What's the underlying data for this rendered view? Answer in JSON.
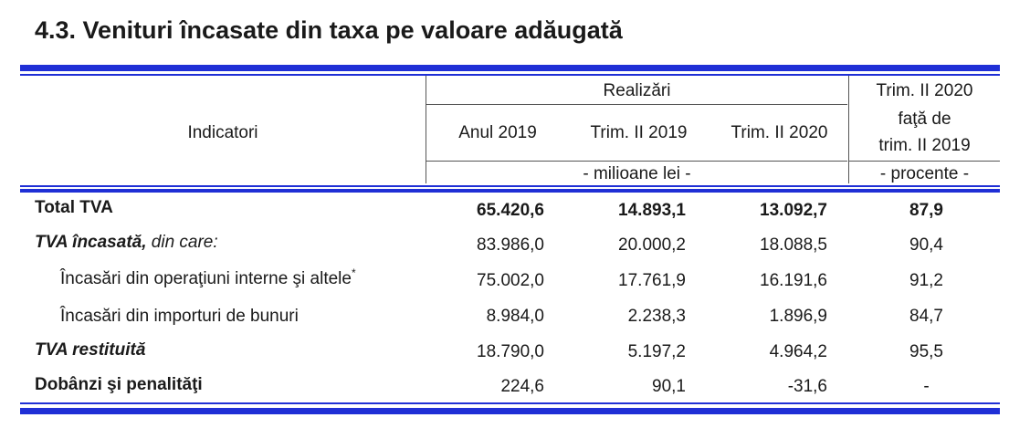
{
  "title": "4.3. Venituri încasate din taxa pe valoare adăugată",
  "header": {
    "indicatori": "Indicatori",
    "realizari": "Realizări",
    "col1": "Anul 2019",
    "col2": "Trim. II 2019",
    "col3": "Trim. II 2020",
    "col4_line1": "Trim. II 2020",
    "col4_line2": "faţă de",
    "col4_line3": "trim. II 2019",
    "unit_values": "- milioane lei -",
    "unit_percent": "- procente -"
  },
  "rows": [
    {
      "label": "Total TVA",
      "asterisk": "",
      "v1": "65.420,6",
      "v2": "14.893,1",
      "v3": "13.092,7",
      "v4": "87,9"
    },
    {
      "label_main": "TVA încasată,",
      "label_rest": " din care:",
      "v1": "83.986,0",
      "v2": "20.000,2",
      "v3": "18.088,5",
      "v4": "90,4"
    },
    {
      "label": "Încasări din operaţiuni interne şi altele",
      "asterisk": "*",
      "v1": "75.002,0",
      "v2": "17.761,9",
      "v3": "16.191,6",
      "v4": "91,2"
    },
    {
      "label": "Încasări din importuri de bunuri",
      "asterisk": "",
      "v1": "8.984,0",
      "v2": "2.238,3",
      "v3": "1.896,9",
      "v4": "84,7"
    },
    {
      "label": "TVA restituită",
      "asterisk": "",
      "v1": "18.790,0",
      "v2": "5.197,2",
      "v3": "4.964,2",
      "v4": "95,5"
    },
    {
      "label": "Dobânzi şi penalităţi",
      "asterisk": "",
      "v1": "224,6",
      "v2": "90,1",
      "v3": "-31,6",
      "v4": "-"
    }
  ],
  "colors": {
    "accent": "#1f2fd6",
    "text": "#1a1a1a",
    "grid": "#555555"
  }
}
